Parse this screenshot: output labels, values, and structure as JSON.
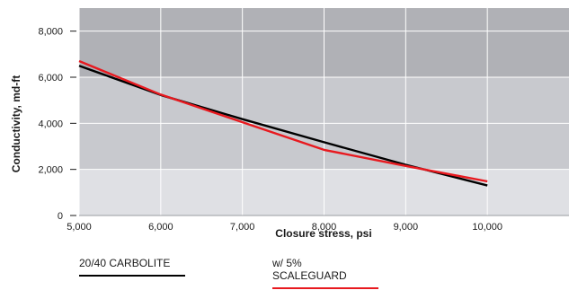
{
  "chart_data": {
    "type": "line",
    "xlabel": "Closure stress, psi",
    "ylabel": "Conductivity, md-ft",
    "xlim": [
      5000,
      11000
    ],
    "ylim": [
      0,
      9000
    ],
    "x_ticks": [
      5000,
      6000,
      7000,
      8000,
      9000,
      10000
    ],
    "x_tick_labels": [
      "5,000",
      "6,000",
      "7,000",
      "8,000",
      "9,000",
      "10,000"
    ],
    "y_ticks": [
      0,
      2000,
      4000,
      6000,
      8000
    ],
    "y_tick_labels": [
      "0",
      "2,000",
      "4,000",
      "6,000",
      "8,000"
    ],
    "grid": true,
    "background_bands": [
      {
        "from": 0,
        "to": 2000,
        "color": "#dfe0e4"
      },
      {
        "from": 2000,
        "to": 6000,
        "color": "#c8c9ce"
      },
      {
        "from": 6000,
        "to": 9000,
        "color": "#b0b1b6"
      }
    ],
    "legend_position": "bottom",
    "series": [
      {
        "name": "20/40 CARBOLITE",
        "color": "#000000",
        "x": [
          5000,
          6000,
          7000,
          8000,
          9000,
          10000
        ],
        "values": [
          6500,
          5230,
          4180,
          3180,
          2200,
          1300
        ]
      },
      {
        "name": "w/ 5% SCALEGUARD",
        "color": "#e8191f",
        "x": [
          5000,
          6000,
          7000,
          8000,
          9000,
          10000
        ],
        "values": [
          6700,
          5250,
          4050,
          2850,
          2150,
          1480
        ]
      }
    ]
  }
}
